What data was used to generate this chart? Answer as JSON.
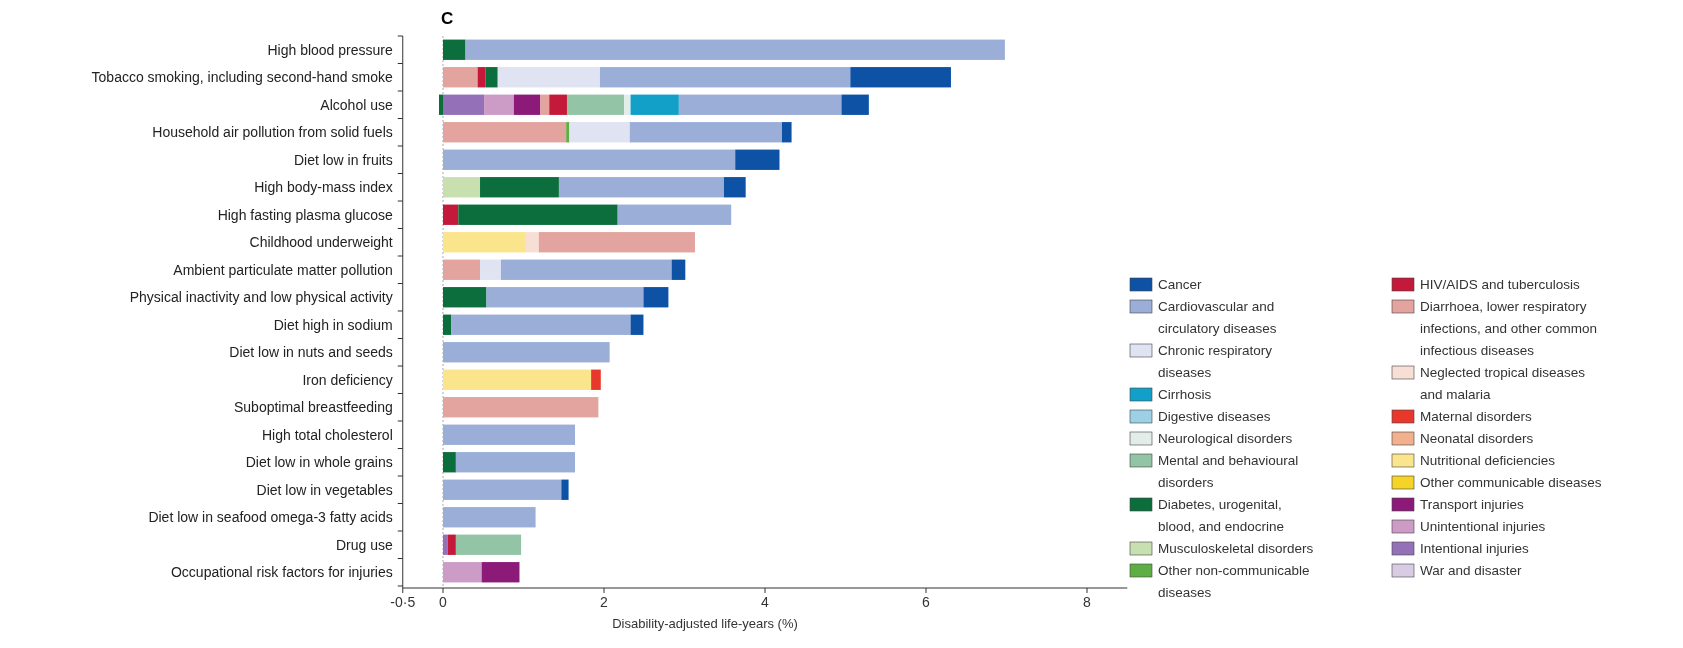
{
  "chart_data": {
    "type": "bar",
    "orientation": "horizontal",
    "stacked": true,
    "title": "C",
    "xlabel": "Disability-adjusted life-years (%)",
    "categories": [
      "High blood pressure",
      "Tobacco smoking, including second-hand smoke",
      "Alcohol use",
      "Household air pollution from solid fuels",
      "Diet low in fruits",
      "High body-mass index",
      "High fasting plasma glucose",
      "Childhood underweight",
      "Ambient particulate matter pollution",
      "Physical inactivity and low physical activity",
      "Diet high in sodium",
      "Diet low in nuts and seeds",
      "Iron deficiency",
      "Suboptimal breastfeeding",
      "High total cholesterol",
      "Diet low in whole grains",
      "Diet low in vegetables",
      "Diet low in seafood omega-3 fatty acids",
      "Drug use",
      "Occupational risk factors for injuries"
    ],
    "xlim": [
      -0.5,
      8.5
    ],
    "xticks": [
      {
        "value": -0.5,
        "label": "-0·5"
      },
      0,
      2,
      4,
      6,
      8
    ],
    "ref_lines": [
      {
        "axis": "x",
        "value": 0,
        "color": "#aaaaaa",
        "line_style": "dotted"
      }
    ],
    "legend": "right",
    "grid": false,
    "series": [
      {
        "name": "War and disaster",
        "color": "#d8cce4",
        "values": [
          null,
          null,
          null,
          null,
          null,
          null,
          null,
          null,
          null,
          null,
          null,
          null,
          null,
          null,
          null,
          null,
          null,
          null,
          null,
          null
        ]
      },
      {
        "name": "Intentional injuries",
        "color": "#9470b8",
        "values": [
          null,
          null,
          0.51,
          null,
          null,
          null,
          null,
          null,
          null,
          null,
          null,
          null,
          null,
          null,
          null,
          null,
          null,
          null,
          0.06,
          null
        ]
      },
      {
        "name": "Unintentional injuries",
        "color": "#cc9cc6",
        "values": [
          null,
          null,
          0.37,
          null,
          null,
          null,
          null,
          null,
          null,
          null,
          null,
          null,
          null,
          null,
          null,
          null,
          null,
          null,
          null,
          0.48
        ]
      },
      {
        "name": "Transport injuries",
        "color": "#8c1a78",
        "values": [
          null,
          null,
          0.33,
          null,
          null,
          null,
          null,
          null,
          null,
          null,
          null,
          null,
          null,
          null,
          null,
          null,
          null,
          null,
          null,
          0.47
        ]
      },
      {
        "name": "Other communicable diseases",
        "color": "#f5d327",
        "values": [
          null,
          null,
          null,
          null,
          null,
          null,
          null,
          null,
          null,
          null,
          null,
          null,
          null,
          null,
          null,
          null,
          null,
          null,
          null,
          null
        ]
      },
      {
        "name": "Nutritional deficiencies",
        "color": "#fbe58c",
        "values": [
          null,
          null,
          null,
          null,
          null,
          null,
          null,
          1.03,
          null,
          null,
          null,
          null,
          1.84,
          null,
          null,
          null,
          null,
          null,
          null,
          null
        ]
      },
      {
        "name": "Neonatal disorders",
        "color": "#f2b08e",
        "values": [
          null,
          null,
          null,
          null,
          null,
          null,
          null,
          null,
          null,
          null,
          null,
          null,
          null,
          null,
          null,
          null,
          null,
          null,
          null,
          null
        ]
      },
      {
        "name": "Maternal disorders",
        "color": "#e8382b",
        "values": [
          null,
          null,
          null,
          null,
          null,
          null,
          null,
          null,
          null,
          null,
          null,
          null,
          0.12,
          null,
          null,
          null,
          null,
          null,
          null,
          null
        ]
      },
      {
        "name": "Neglected tropical diseases and malaria",
        "color": "#f7dfd6",
        "values": [
          null,
          null,
          null,
          null,
          null,
          null,
          null,
          0.16,
          null,
          null,
          null,
          null,
          null,
          null,
          null,
          null,
          null,
          null,
          null,
          null
        ]
      },
      {
        "name": "Diarrhoea, lower respiratory infections, and other common infectious diseases",
        "color": "#e3a39e",
        "values": [
          null,
          0.43,
          0.11,
          1.53,
          null,
          null,
          null,
          1.94,
          0.46,
          null,
          null,
          null,
          null,
          1.93,
          null,
          null,
          null,
          null,
          null,
          null
        ]
      },
      {
        "name": "HIV/AIDS and tuberculosis",
        "color": "#c4193a",
        "values": [
          null,
          0.1,
          0.22,
          null,
          null,
          null,
          0.19,
          null,
          null,
          null,
          null,
          null,
          null,
          null,
          null,
          null,
          null,
          null,
          0.1,
          null
        ]
      },
      {
        "name": "Other non-communicable diseases",
        "color": "#5fae45",
        "values": [
          null,
          null,
          null,
          0.04,
          null,
          null,
          null,
          null,
          null,
          null,
          null,
          null,
          null,
          null,
          null,
          null,
          null,
          null,
          null,
          null
        ]
      },
      {
        "name": "Musculoskeletal disorders",
        "color": "#c8e0b0",
        "values": [
          null,
          null,
          null,
          null,
          null,
          0.46,
          null,
          null,
          null,
          null,
          null,
          null,
          null,
          null,
          null,
          null,
          null,
          null,
          null,
          null
        ]
      },
      {
        "name": "Diabetes, urogenital, blood, and endocrine",
        "color": "#0b6e3c",
        "values": [
          0.28,
          0.15,
          -0.05,
          null,
          null,
          0.98,
          1.98,
          null,
          null,
          0.54,
          0.1,
          null,
          null,
          null,
          null,
          0.16,
          null,
          null,
          null,
          null
        ]
      },
      {
        "name": "Mental and behavioural disorders",
        "color": "#93c4a5",
        "values": [
          null,
          null,
          0.71,
          null,
          null,
          null,
          null,
          null,
          null,
          null,
          null,
          null,
          null,
          null,
          null,
          null,
          null,
          null,
          0.81,
          null
        ]
      },
      {
        "name": "Neurological disorders",
        "color": "#e2ece8",
        "values": [
          null,
          null,
          0.08,
          null,
          null,
          null,
          null,
          null,
          null,
          null,
          null,
          null,
          null,
          null,
          null,
          null,
          null,
          null,
          null,
          null
        ]
      },
      {
        "name": "Digestive diseases",
        "color": "#9dcfe5",
        "values": [
          null,
          null,
          null,
          null,
          null,
          null,
          null,
          null,
          null,
          null,
          null,
          null,
          null,
          null,
          null,
          null,
          null,
          null,
          null,
          null
        ]
      },
      {
        "name": "Cirrhosis",
        "color": "#13a0c8",
        "values": [
          null,
          null,
          0.6,
          null,
          null,
          null,
          null,
          null,
          null,
          null,
          null,
          null,
          null,
          null,
          null,
          null,
          null,
          null,
          null,
          null
        ]
      },
      {
        "name": "Chronic respiratory diseases",
        "color": "#dfe3f2",
        "values": [
          null,
          1.27,
          null,
          0.75,
          null,
          null,
          null,
          null,
          0.26,
          null,
          null,
          null,
          null,
          null,
          null,
          null,
          null,
          null,
          null,
          null
        ]
      },
      {
        "name": "Cardiovascular and circulatory diseases",
        "color": "#9aaed8",
        "values": [
          6.7,
          3.11,
          2.02,
          1.89,
          3.63,
          2.05,
          1.41,
          null,
          2.12,
          1.95,
          2.23,
          2.07,
          null,
          null,
          1.64,
          1.48,
          1.47,
          1.15,
          null,
          null
        ]
      },
      {
        "name": "Cancer",
        "color": "#0d52a5",
        "values": [
          null,
          1.25,
          0.34,
          0.12,
          0.55,
          0.27,
          null,
          null,
          0.17,
          0.31,
          0.16,
          null,
          null,
          null,
          null,
          null,
          0.09,
          null,
          null,
          null
        ]
      }
    ]
  }
}
